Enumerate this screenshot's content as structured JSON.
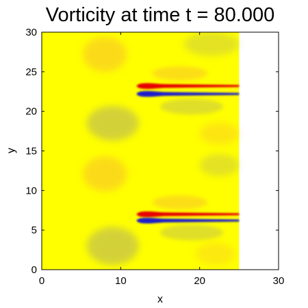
{
  "chart_data": {
    "type": "heatmap",
    "title": "Vorticity at time t = 80.000",
    "xlabel": "x",
    "ylabel": "y",
    "xlim": [
      0,
      30
    ],
    "ylim": [
      0,
      30
    ],
    "xticks": [
      "0",
      "10",
      "20",
      "30"
    ],
    "yticks": [
      "0",
      "5",
      "10",
      "15",
      "20",
      "25",
      "30"
    ],
    "grid": false,
    "field_extent": {
      "x": [
        0,
        25
      ],
      "y": [
        0,
        30
      ]
    },
    "colormap": {
      "background": "#ffff00",
      "positive_weak": "#f7b733",
      "positive_strong": "#e60000",
      "negative_weak": "#b0ad66",
      "negative_strong": "#1a1acc"
    },
    "features": [
      {
        "kind": "negative_blob",
        "x": 9,
        "y": 18.5,
        "rx": 3.3,
        "ry": 2.2,
        "strength": 0.55
      },
      {
        "kind": "positive_blob",
        "x": 8,
        "y": 27.2,
        "rx": 2.8,
        "ry": 2.2,
        "strength": 0.5
      },
      {
        "kind": "negative_blob",
        "x": 9,
        "y": 3,
        "rx": 3.3,
        "ry": 2.4,
        "strength": 0.55
      },
      {
        "kind": "positive_blob",
        "x": 8,
        "y": 12.1,
        "rx": 2.8,
        "ry": 2.2,
        "strength": 0.5
      },
      {
        "kind": "negative_blob",
        "x": 21.5,
        "y": 28.5,
        "rx": 3.5,
        "ry": 1.5,
        "strength": 0.35
      },
      {
        "kind": "positive_blob",
        "x": 22.5,
        "y": 17.2,
        "rx": 2.5,
        "ry": 1.4,
        "strength": 0.35
      },
      {
        "kind": "negative_blob",
        "x": 22.5,
        "y": 13.2,
        "rx": 2.5,
        "ry": 1.4,
        "strength": 0.35
      },
      {
        "kind": "positive_blob",
        "x": 22,
        "y": 2,
        "rx": 2.5,
        "ry": 1.4,
        "strength": 0.3
      },
      {
        "kind": "positive_shear",
        "x0": 12,
        "x1": 25,
        "y": 23.2,
        "strength": 1
      },
      {
        "kind": "negative_shear",
        "x0": 12,
        "x1": 25,
        "y": 22.2,
        "strength": 1
      },
      {
        "kind": "positive_shear",
        "x0": 12,
        "x1": 25,
        "y": 7.0,
        "strength": 1
      },
      {
        "kind": "negative_shear",
        "x0": 12,
        "x1": 25,
        "y": 6.2,
        "strength": 1
      },
      {
        "kind": "positive_wisp",
        "x": 17.5,
        "y": 24.8,
        "rx": 3.5,
        "ry": 0.9,
        "strength": 0.45
      },
      {
        "kind": "negative_wisp",
        "x": 19,
        "y": 20.6,
        "rx": 4,
        "ry": 1.0,
        "strength": 0.4
      },
      {
        "kind": "positive_wisp",
        "x": 17.5,
        "y": 8.5,
        "rx": 3.5,
        "ry": 0.9,
        "strength": 0.45
      },
      {
        "kind": "negative_wisp",
        "x": 19,
        "y": 4.7,
        "rx": 4,
        "ry": 1.0,
        "strength": 0.4
      }
    ]
  }
}
